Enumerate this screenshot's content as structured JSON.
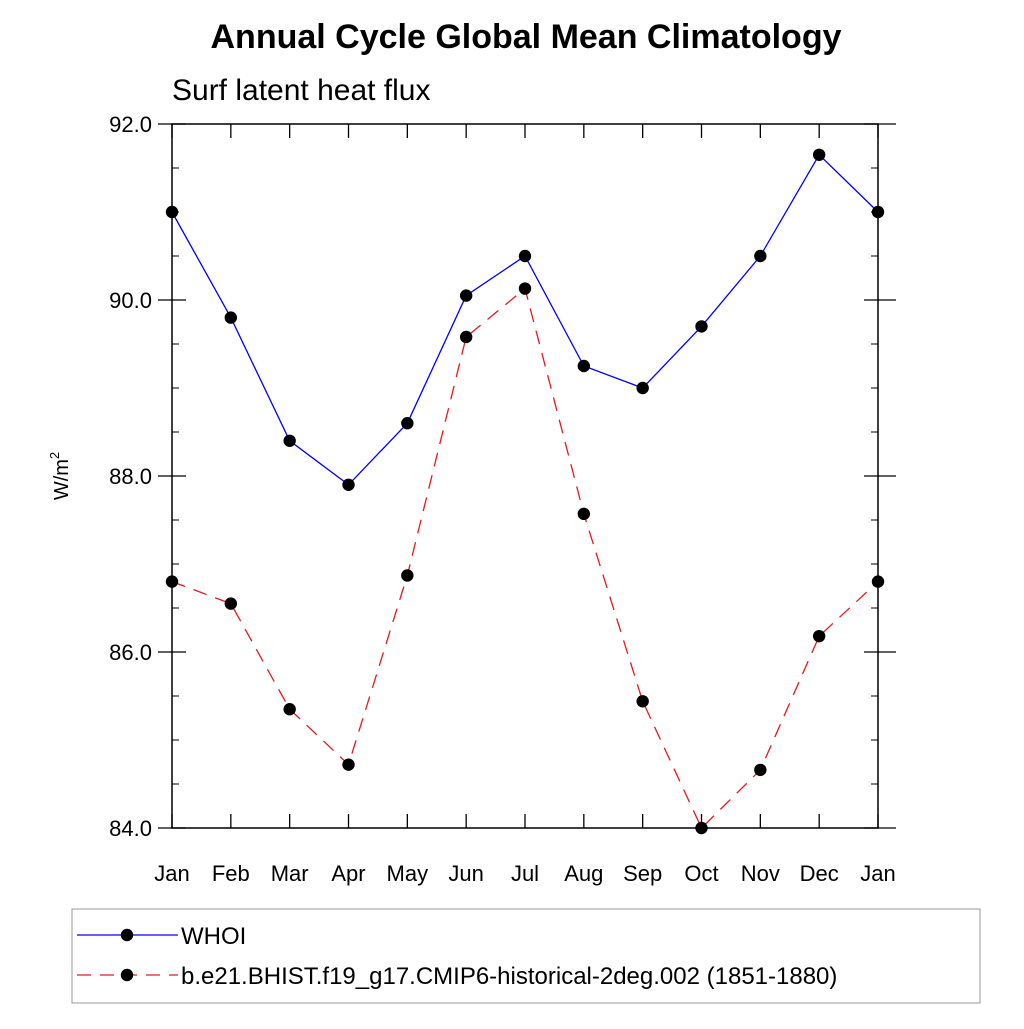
{
  "chart_data": {
    "type": "line",
    "title": "Annual Cycle Global Mean Climatology",
    "subtitle": "Surf latent heat flux",
    "xlabel": "",
    "ylabel": {
      "base": "W/m",
      "sup": "2"
    },
    "categories": [
      "Jan",
      "Feb",
      "Mar",
      "Apr",
      "May",
      "Jun",
      "Jul",
      "Aug",
      "Sep",
      "Oct",
      "Nov",
      "Dec",
      "Jan"
    ],
    "ylim": [
      84.0,
      92.0
    ],
    "yticks": [
      84.0,
      86.0,
      88.0,
      90.0,
      92.0
    ],
    "ytick_labels": [
      "84.0",
      "86.0",
      "88.0",
      "90.0",
      "92.0"
    ],
    "y_minor_step": 0.5,
    "grid": false,
    "legend_placement": "bottom",
    "series": [
      {
        "name": "WHOI",
        "color": "#0000ff",
        "dash": "solid",
        "marker": "filled-circle",
        "values": [
          91.0,
          89.8,
          88.4,
          87.9,
          88.6,
          90.05,
          90.5,
          89.25,
          89.0,
          89.7,
          90.5,
          91.65,
          91.0
        ]
      },
      {
        "name": "b.e21.BHIST.f19_g17.CMIP6-historical-2deg.002 (1851-1880)",
        "color": "#e41a1c",
        "dash": "dashed",
        "marker": "filled-circle",
        "values": [
          86.8,
          86.55,
          85.35,
          84.72,
          86.87,
          89.58,
          90.13,
          87.57,
          85.44,
          84.0,
          84.66,
          86.18,
          86.8
        ]
      }
    ]
  }
}
